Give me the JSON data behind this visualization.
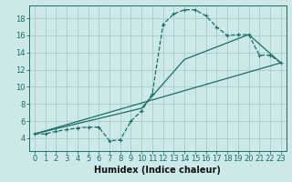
{
  "xlabel": "Humidex (Indice chaleur)",
  "bg_color": "#cce8e8",
  "grid_color": "#aacccc",
  "line_color": "#1a6e6a",
  "xlim": [
    -0.5,
    23.5
  ],
  "ylim": [
    2.5,
    19.5
  ],
  "xticks": [
    0,
    1,
    2,
    3,
    4,
    5,
    6,
    7,
    8,
    9,
    10,
    11,
    12,
    13,
    14,
    15,
    16,
    17,
    18,
    19,
    20,
    21,
    22,
    23
  ],
  "yticks": [
    4,
    6,
    8,
    10,
    12,
    14,
    16,
    18
  ],
  "line1_x": [
    0,
    1,
    2,
    3,
    4,
    5,
    6,
    7,
    8,
    9,
    10,
    11,
    12,
    13,
    14,
    15,
    16,
    17,
    18,
    19,
    20,
    21,
    22,
    23
  ],
  "line1_y": [
    4.5,
    4.5,
    4.8,
    5.0,
    5.2,
    5.3,
    5.3,
    3.7,
    3.8,
    6.0,
    7.2,
    9.2,
    17.3,
    18.5,
    19.0,
    19.0,
    18.3,
    17.0,
    16.0,
    16.1,
    16.1,
    13.7,
    13.7,
    12.8
  ],
  "line2_x": [
    0,
    23
  ],
  "line2_y": [
    4.5,
    12.8
  ],
  "line3_x": [
    0,
    10,
    14,
    20,
    23
  ],
  "line3_y": [
    4.5,
    7.5,
    13.2,
    16.1,
    12.8
  ],
  "marker_size": 2.5,
  "line_width": 0.9,
  "font_size_label": 7,
  "font_size_tick": 6
}
